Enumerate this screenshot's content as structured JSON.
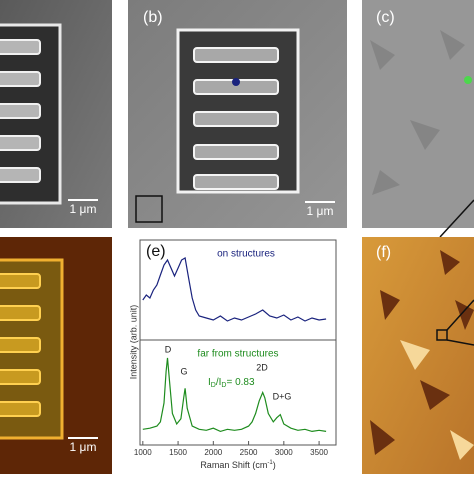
{
  "panels": {
    "labels": [
      "(b)",
      "(c)",
      "(e)",
      "(f)"
    ],
    "scale_bars": [
      "1 μm",
      "1 μm",
      "1 μm"
    ]
  },
  "chart_data": {
    "type": "line",
    "x_label": "Raman Shift (cm",
    "x_label_sup": "-1",
    "x_label_end": ")",
    "y_label": "Intensity (arb. unit)",
    "xlim": [
      960,
      3740
    ],
    "xticks": [
      1000,
      1500,
      2000,
      2500,
      3000,
      3500
    ],
    "ylim": [
      0,
      1
    ],
    "series": [
      {
        "name": "on structures",
        "color": "#1a237e",
        "x": [
          1000,
          1050,
          1100,
          1150,
          1200,
          1250,
          1300,
          1350,
          1400,
          1450,
          1500,
          1550,
          1600,
          1650,
          1700,
          1750,
          1800,
          1900,
          2000,
          2100,
          2200,
          2300,
          2400,
          2500,
          2600,
          2700,
          2800,
          2900,
          3000,
          3100,
          3200,
          3300,
          3400,
          3500,
          3600
        ],
        "values": [
          0.4,
          0.45,
          0.42,
          0.5,
          0.55,
          0.65,
          0.75,
          0.8,
          0.72,
          0.64,
          0.72,
          0.8,
          0.82,
          0.62,
          0.42,
          0.3,
          0.24,
          0.22,
          0.2,
          0.24,
          0.19,
          0.22,
          0.2,
          0.23,
          0.26,
          0.3,
          0.24,
          0.22,
          0.25,
          0.2,
          0.23,
          0.19,
          0.22,
          0.2,
          0.21
        ]
      },
      {
        "name": "far from structures",
        "color": "#1e8c1e",
        "x": [
          1000,
          1100,
          1200,
          1250,
          1300,
          1330,
          1350,
          1380,
          1420,
          1480,
          1540,
          1580,
          1600,
          1630,
          1700,
          1800,
          1900,
          2000,
          2100,
          2200,
          2300,
          2400,
          2500,
          2550,
          2600,
          2650,
          2700,
          2730,
          2780,
          2850,
          2900,
          2950,
          3000,
          3100,
          3200,
          3300,
          3400,
          3500,
          3600
        ],
        "values": [
          0.15,
          0.16,
          0.18,
          0.22,
          0.4,
          0.7,
          0.83,
          0.6,
          0.3,
          0.2,
          0.25,
          0.45,
          0.54,
          0.35,
          0.18,
          0.15,
          0.14,
          0.16,
          0.13,
          0.15,
          0.14,
          0.15,
          0.18,
          0.22,
          0.3,
          0.42,
          0.5,
          0.45,
          0.3,
          0.22,
          0.26,
          0.29,
          0.2,
          0.16,
          0.14,
          0.15,
          0.13,
          0.14,
          0.13
        ]
      }
    ],
    "peak_labels": [
      "D",
      "G",
      "2D",
      "D+G"
    ],
    "ratio_label": [
      "I",
      "D",
      "/I",
      "D",
      "= 0.83"
    ]
  }
}
